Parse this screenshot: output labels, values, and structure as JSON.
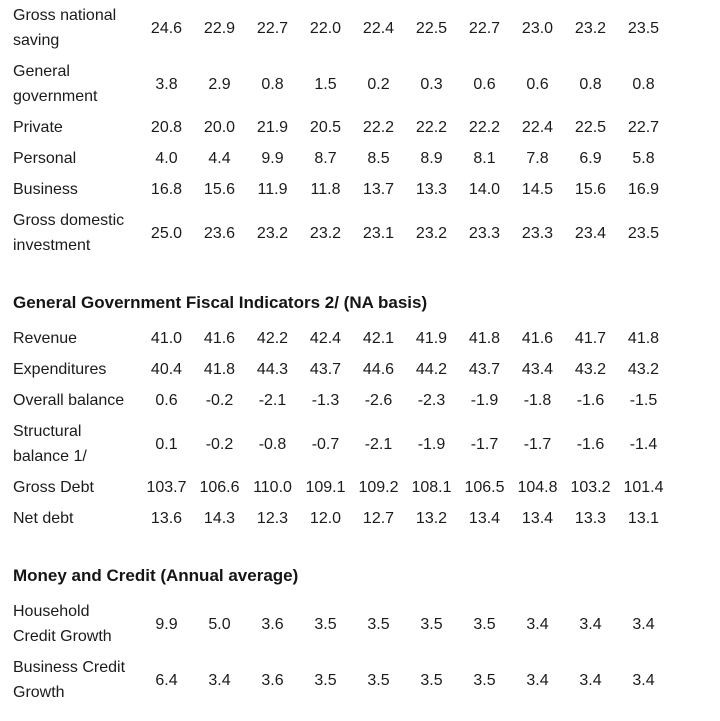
{
  "colors": {
    "background": "#ffffff",
    "text": "#1b1b1b",
    "heading_text": "#151515"
  },
  "table": {
    "num_data_columns": 10,
    "sections": [
      {
        "heading": null,
        "rows": [
          {
            "label": "Gross national saving",
            "values": [
              "24.6",
              "22.9",
              "22.7",
              "22.0",
              "22.4",
              "22.5",
              "22.7",
              "23.0",
              "23.2",
              "23.5"
            ]
          },
          {
            "label": "General government",
            "values": [
              "3.8",
              "2.9",
              "0.8",
              "1.5",
              "0.2",
              "0.3",
              "0.6",
              "0.6",
              "0.8",
              "0.8"
            ]
          },
          {
            "label": "Private",
            "values": [
              "20.8",
              "20.0",
              "21.9",
              "20.5",
              "22.2",
              "22.2",
              "22.2",
              "22.4",
              "22.5",
              "22.7"
            ]
          },
          {
            "label": "Personal",
            "values": [
              "4.0",
              "4.4",
              "9.9",
              "8.7",
              "8.5",
              "8.9",
              "8.1",
              "7.8",
              "6.9",
              "5.8"
            ]
          },
          {
            "label": "Business",
            "values": [
              "16.8",
              "15.6",
              "11.9",
              "11.8",
              "13.7",
              "13.3",
              "14.0",
              "14.5",
              "15.6",
              "16.9"
            ]
          },
          {
            "label": "Gross domestic investment",
            "values": [
              "25.0",
              "23.6",
              "23.2",
              "23.2",
              "23.1",
              "23.2",
              "23.3",
              "23.3",
              "23.4",
              "23.5"
            ]
          }
        ]
      },
      {
        "heading": "General Government Fiscal Indicators 2/ (NA basis)",
        "rows": [
          {
            "label": "Revenue",
            "values": [
              "41.0",
              "41.6",
              "42.2",
              "42.4",
              "42.1",
              "41.9",
              "41.8",
              "41.6",
              "41.7",
              "41.8"
            ]
          },
          {
            "label": "Expenditures",
            "values": [
              "40.4",
              "41.8",
              "44.3",
              "43.7",
              "44.6",
              "44.2",
              "43.7",
              "43.4",
              "43.2",
              "43.2"
            ]
          },
          {
            "label": "Overall balance",
            "values": [
              "0.6",
              "-0.2",
              "-2.1",
              "-1.3",
              "-2.6",
              "-2.3",
              "-1.9",
              "-1.8",
              "-1.6",
              "-1.5"
            ]
          },
          {
            "label": "Structural balance 1/",
            "values": [
              "0.1",
              "-0.2",
              "-0.8",
              "-0.7",
              "-2.1",
              "-1.9",
              "-1.7",
              "-1.7",
              "-1.6",
              "-1.4"
            ]
          },
          {
            "label": "Gross Debt",
            "values": [
              "103.7",
              "106.6",
              "110.0",
              "109.1",
              "109.2",
              "108.1",
              "106.5",
              "104.8",
              "103.2",
              "101.4"
            ]
          },
          {
            "label": "Net debt",
            "values": [
              "13.6",
              "14.3",
              "12.3",
              "12.0",
              "12.7",
              "13.2",
              "13.4",
              "13.4",
              "13.3",
              "13.1"
            ]
          }
        ]
      },
      {
        "heading": "Money and Credit (Annual average)",
        "rows": [
          {
            "label": "Household Credit Growth",
            "values": [
              "9.9",
              "5.0",
              "3.6",
              "3.5",
              "3.5",
              "3.5",
              "3.5",
              "3.4",
              "3.4",
              "3.4"
            ]
          },
          {
            "label": "Business Credit Growth",
            "values": [
              "6.4",
              "3.4",
              "3.6",
              "3.5",
              "3.5",
              "3.5",
              "3.5",
              "3.4",
              "3.4",
              "3.4"
            ]
          }
        ]
      }
    ]
  }
}
